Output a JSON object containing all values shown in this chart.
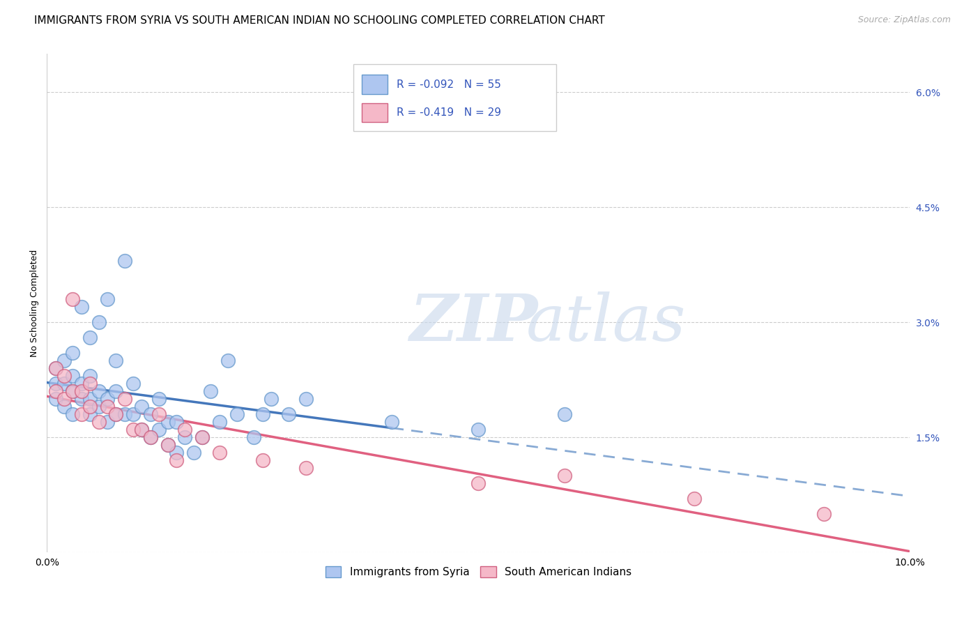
{
  "title": "IMMIGRANTS FROM SYRIA VS SOUTH AMERICAN INDIAN NO SCHOOLING COMPLETED CORRELATION CHART",
  "source": "Source: ZipAtlas.com",
  "ylabel": "No Schooling Completed",
  "xlim": [
    0.0,
    0.1
  ],
  "ylim": [
    0.0,
    0.065
  ],
  "yticks": [
    0.0,
    0.015,
    0.03,
    0.045,
    0.06
  ],
  "ytick_labels": [
    "",
    "1.5%",
    "3.0%",
    "4.5%",
    "6.0%"
  ],
  "grid_color": "#cccccc",
  "background_color": "#ffffff",
  "series1": {
    "label": "Immigrants from Syria",
    "color": "#aec6f0",
    "edge_color": "#6699cc",
    "R": -0.092,
    "N": 55,
    "line_color": "#4477bb",
    "line_dash_color": "#88aad4",
    "scatter_x": [
      0.001,
      0.001,
      0.001,
      0.002,
      0.002,
      0.002,
      0.003,
      0.003,
      0.003,
      0.003,
      0.004,
      0.004,
      0.004,
      0.005,
      0.005,
      0.005,
      0.005,
      0.006,
      0.006,
      0.006,
      0.007,
      0.007,
      0.007,
      0.008,
      0.008,
      0.008,
      0.009,
      0.009,
      0.01,
      0.01,
      0.011,
      0.011,
      0.012,
      0.012,
      0.013,
      0.013,
      0.014,
      0.014,
      0.015,
      0.015,
      0.016,
      0.017,
      0.018,
      0.019,
      0.02,
      0.021,
      0.022,
      0.024,
      0.025,
      0.026,
      0.028,
      0.03,
      0.04,
      0.05,
      0.06
    ],
    "scatter_y": [
      0.02,
      0.022,
      0.024,
      0.019,
      0.022,
      0.025,
      0.018,
      0.021,
      0.023,
      0.026,
      0.02,
      0.022,
      0.032,
      0.018,
      0.02,
      0.023,
      0.028,
      0.019,
      0.021,
      0.03,
      0.017,
      0.02,
      0.033,
      0.018,
      0.021,
      0.025,
      0.018,
      0.038,
      0.018,
      0.022,
      0.016,
      0.019,
      0.015,
      0.018,
      0.016,
      0.02,
      0.014,
      0.017,
      0.013,
      0.017,
      0.015,
      0.013,
      0.015,
      0.021,
      0.017,
      0.025,
      0.018,
      0.015,
      0.018,
      0.02,
      0.018,
      0.02,
      0.017,
      0.016,
      0.018
    ],
    "line_solid_end": 0.04
  },
  "series2": {
    "label": "South American Indians",
    "color": "#f5b8c8",
    "edge_color": "#d06080",
    "R": -0.419,
    "N": 29,
    "line_color": "#e06080",
    "scatter_x": [
      0.001,
      0.001,
      0.002,
      0.002,
      0.003,
      0.003,
      0.004,
      0.004,
      0.005,
      0.005,
      0.006,
      0.007,
      0.008,
      0.009,
      0.01,
      0.011,
      0.012,
      0.013,
      0.014,
      0.015,
      0.016,
      0.018,
      0.02,
      0.025,
      0.03,
      0.05,
      0.06,
      0.075,
      0.09
    ],
    "scatter_y": [
      0.021,
      0.024,
      0.02,
      0.023,
      0.021,
      0.033,
      0.018,
      0.021,
      0.019,
      0.022,
      0.017,
      0.019,
      0.018,
      0.02,
      0.016,
      0.016,
      0.015,
      0.018,
      0.014,
      0.012,
      0.016,
      0.015,
      0.013,
      0.012,
      0.011,
      0.009,
      0.01,
      0.007,
      0.005
    ]
  },
  "watermark_zip": "ZIP",
  "watermark_atlas": "atlas",
  "legend_text_color": "#3355bb",
  "title_fontsize": 11,
  "axis_label_fontsize": 9,
  "tick_fontsize": 10,
  "source_fontsize": 9
}
